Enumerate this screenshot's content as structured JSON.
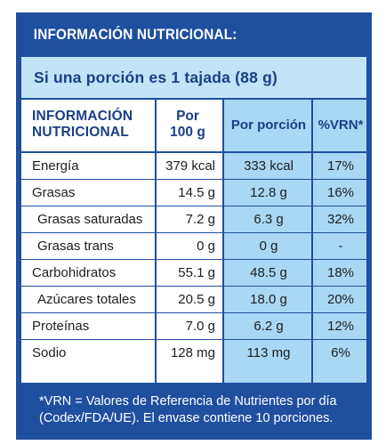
{
  "header": {
    "title": "INFORMACIÓN NUTRICIONAL:"
  },
  "portion": {
    "text": "Si una porción es 1 tajada (88 g)"
  },
  "columns": {
    "info_line1": "INFORMACIÓN",
    "info_line2": "NUTRICIONAL",
    "per100_line1": "Por",
    "per100_line2": "100 g",
    "per_portion": "Por porción",
    "vrn": "%VRN*"
  },
  "rows": [
    {
      "name": "Energía",
      "per100": "379 kcal",
      "portion": "333 kcal",
      "vrn": "17%"
    },
    {
      "name": "Grasas",
      "per100": "14.5 g",
      "portion": "12.8 g",
      "vrn": "16%"
    },
    {
      "name": "Grasas saturadas",
      "per100": "7.2 g",
      "portion": "6.3 g",
      "vrn": "32%"
    },
    {
      "name": "Grasas trans",
      "per100": "0 g",
      "portion": "0 g",
      "vrn": "-"
    },
    {
      "name": "Carbohidratos",
      "per100": "55.1 g",
      "portion": "48.5 g",
      "vrn": "18%"
    },
    {
      "name": "Azúcares totales",
      "per100": "20.5 g",
      "portion": "18.0 g",
      "vrn": "20%"
    },
    {
      "name": "Proteínas",
      "per100": "7.0 g",
      "portion": "6.2 g",
      "vrn": "12%"
    },
    {
      "name": "Sodio",
      "per100": "128 mg",
      "portion": "113 mg",
      "vrn": "6%"
    }
  ],
  "footer": {
    "line1": "*VRN = Valores de Referencia de Nutrientes por día",
    "line2": "(Codex/FDA/UE). El envase contiene 10 porciones."
  },
  "colors": {
    "frame": "#1f4f9f",
    "light_blue": "#a9d7f4",
    "portion_band": "#c2e3f8",
    "heading_text": "#1a3f86"
  }
}
